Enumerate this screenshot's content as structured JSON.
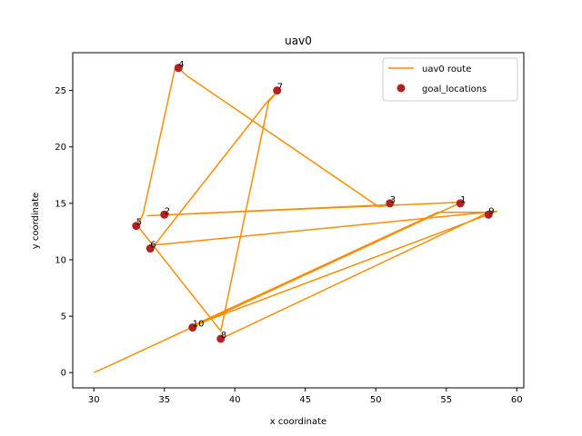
{
  "chart_data": {
    "type": "line",
    "title": "uav0",
    "xlabel": "x coordinate",
    "ylabel": "y coordinate",
    "xlim": [
      28.5,
      60.5
    ],
    "ylim": [
      -1.35,
      28.35
    ],
    "xticks": [
      30,
      35,
      40,
      45,
      50,
      55,
      60
    ],
    "yticks": [
      0,
      5,
      10,
      15,
      20,
      25
    ],
    "grid": false,
    "legend_position": "top-right",
    "colors": {
      "route": "#ff8c00",
      "goals": "#b22222"
    },
    "route": {
      "name": "uav0 route",
      "points": [
        [
          30,
          0
        ],
        [
          30.9,
          0.5
        ],
        [
          56.1,
          15.1
        ],
        [
          33.8,
          13.9
        ],
        [
          51.3,
          14.9
        ],
        [
          50.2,
          14.7
        ],
        [
          36.6,
          26.3
        ],
        [
          35.8,
          27.2
        ],
        [
          33.5,
          14.1
        ],
        [
          33.1,
          13.0
        ],
        [
          39.0,
          3.7
        ],
        [
          42.4,
          24.0
        ],
        [
          43.1,
          25.0
        ],
        [
          42.3,
          24.0
        ],
        [
          34.3,
          11.3
        ],
        [
          58.6,
          14.3
        ],
        [
          36.9,
          4.1
        ],
        [
          54.4,
          14.2
        ],
        [
          58.0,
          14.2
        ],
        [
          39.0,
          3.0
        ]
      ]
    },
    "goals": {
      "name": "goal_locations",
      "points": [
        {
          "label": "1",
          "x": 56,
          "y": 15
        },
        {
          "label": "2",
          "x": 35,
          "y": 14
        },
        {
          "label": "3",
          "x": 51,
          "y": 15
        },
        {
          "label": "4",
          "x": 36,
          "y": 27
        },
        {
          "label": "5",
          "x": 33,
          "y": 13
        },
        {
          "label": "6",
          "x": 34,
          "y": 11
        },
        {
          "label": "7",
          "x": 43,
          "y": 25
        },
        {
          "label": "8",
          "x": 39,
          "y": 3
        },
        {
          "label": "9",
          "x": 58,
          "y": 14
        },
        {
          "label": "10",
          "x": 37,
          "y": 4
        }
      ]
    }
  }
}
